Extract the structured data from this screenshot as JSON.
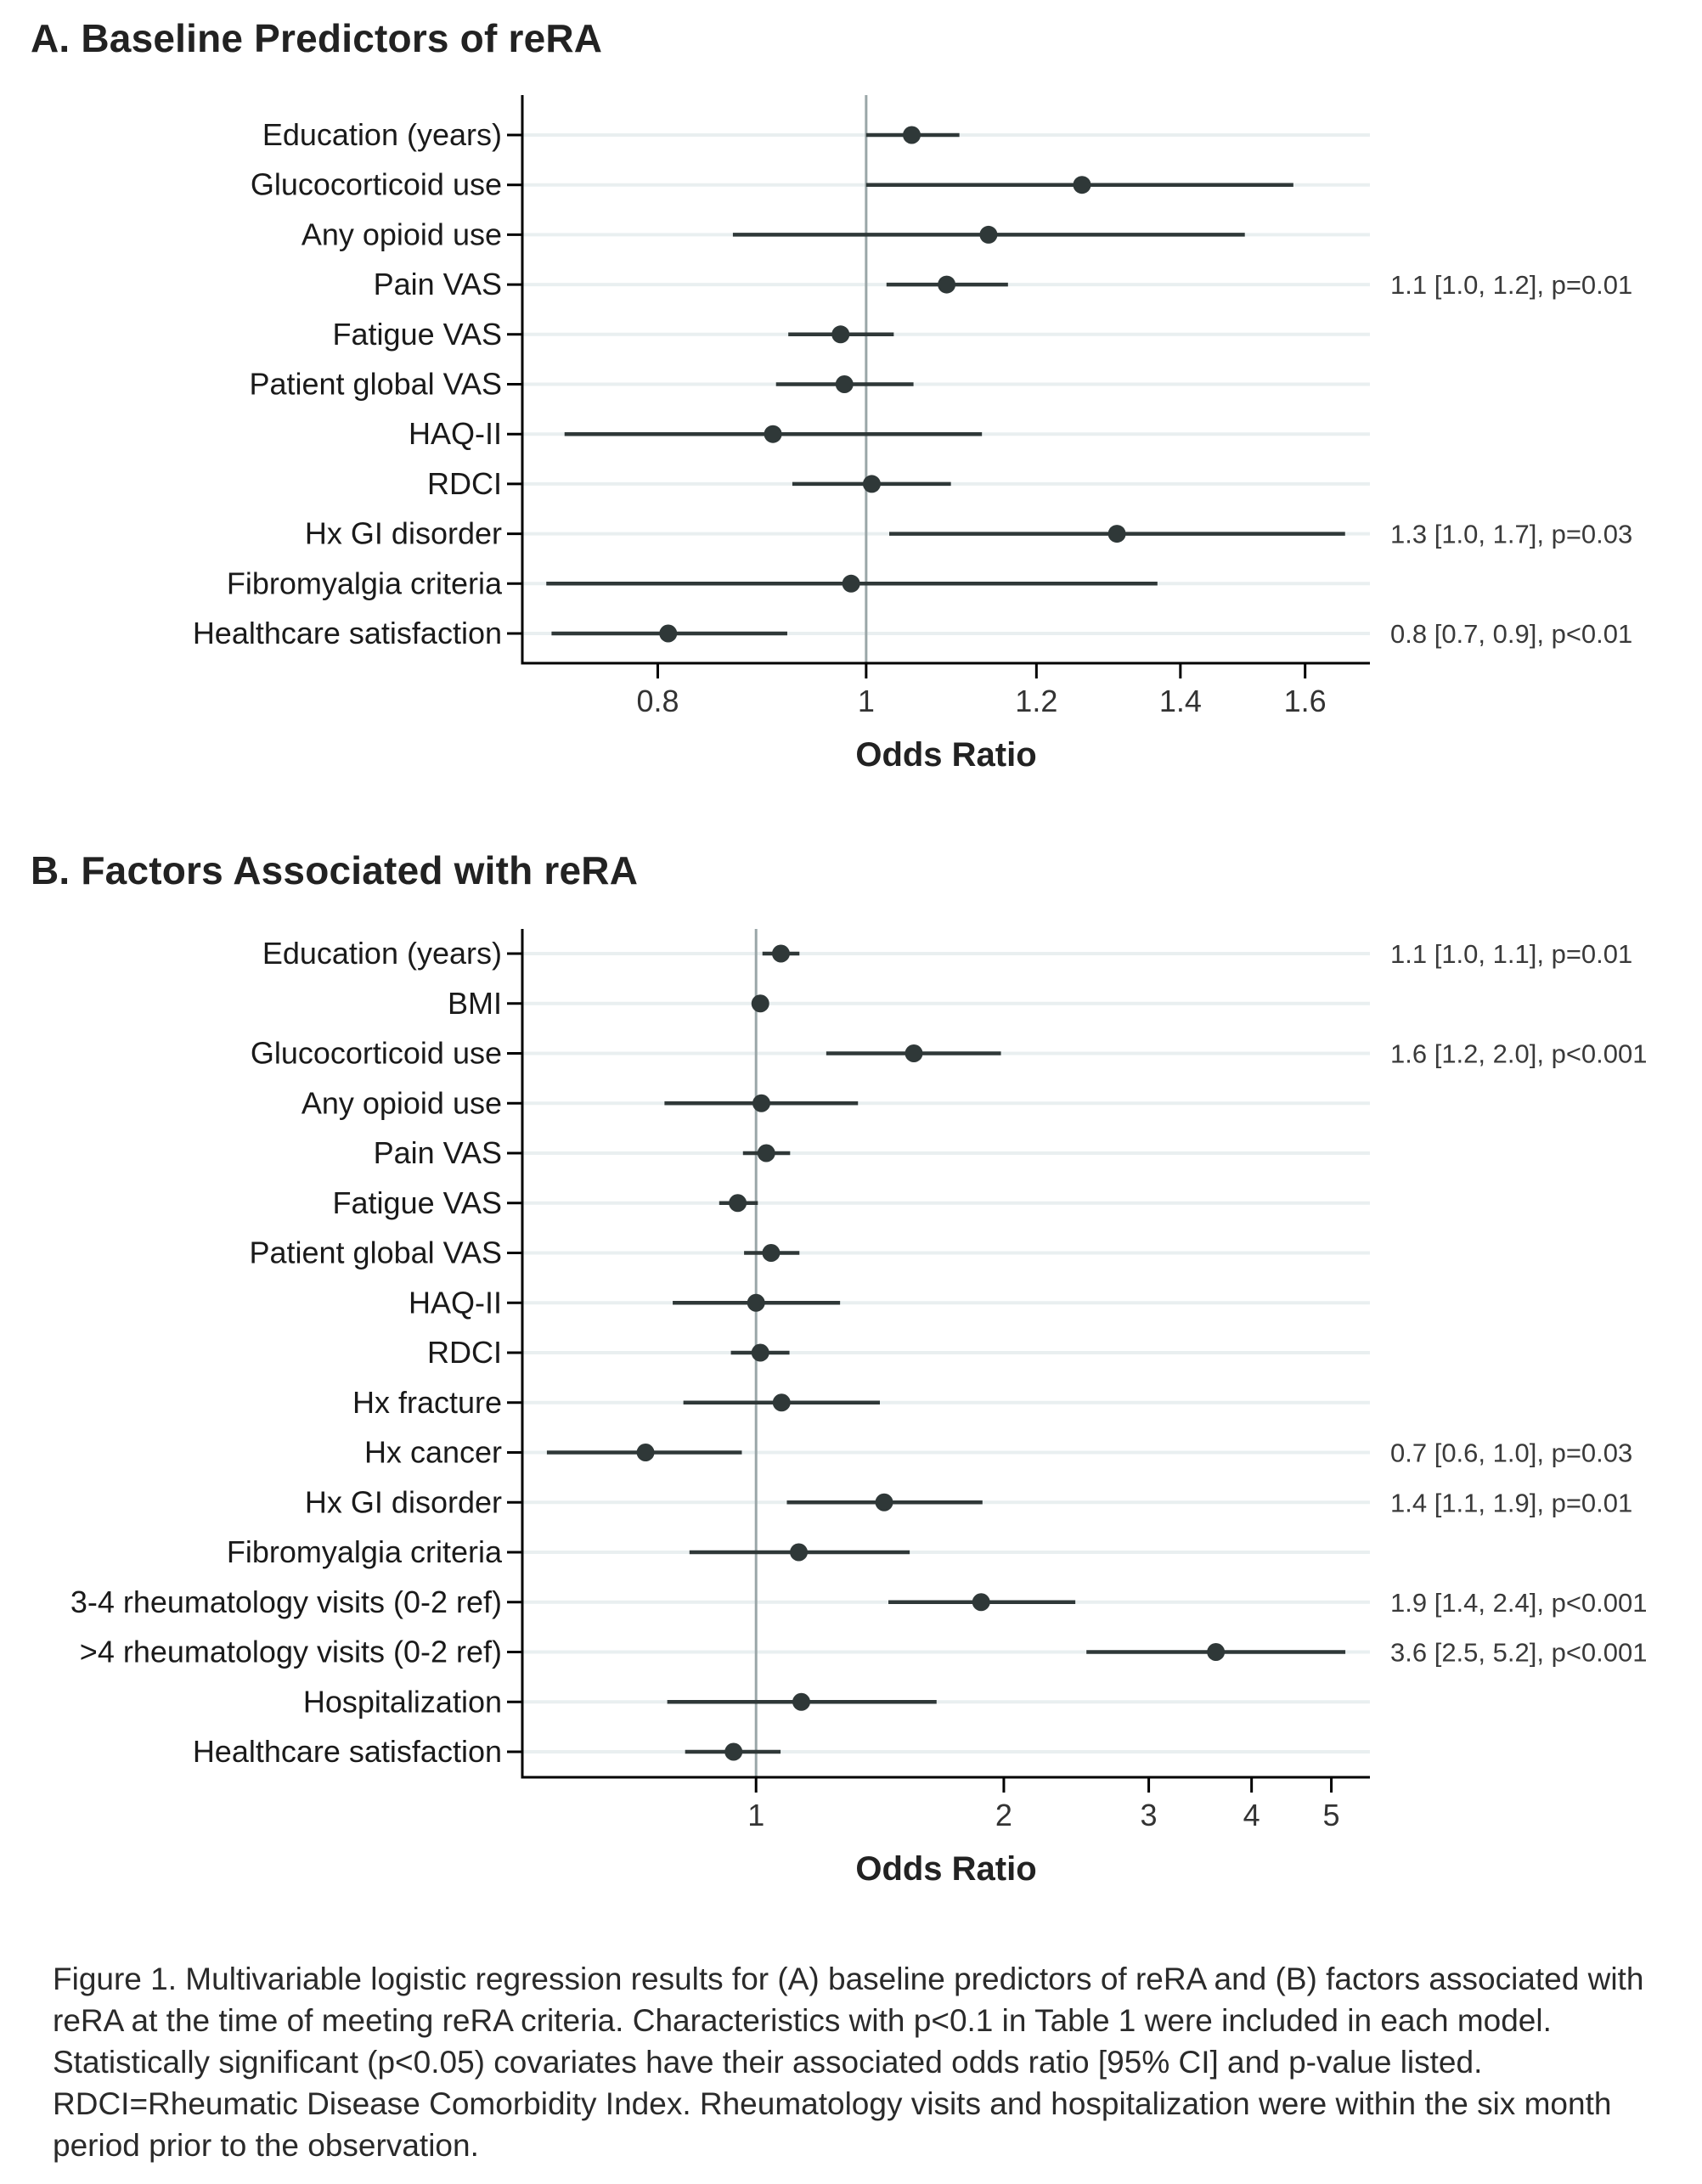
{
  "caption": "Figure 1. Multivariable logistic regression results for (A) baseline predictors of reRA and (B) factors associated with reRA at the time of meeting reRA criteria. Characteristics with p<0.1 in Table 1 were included in each model. Statistically significant (p<0.05) covariates have their associated odds ratio [95% CI] and p-value listed. RDCI=Rheumatic Disease Comorbidity Index. Rheumatology visits and hospitalization were within the six month period prior to the observation.",
  "colors": {
    "point": "#2f3838",
    "ci_line": "#2f3838",
    "reference_line": "#9aa6a8",
    "gridline": "#e9eff0",
    "axis": "#000000"
  },
  "chart_data": [
    {
      "type": "scatter",
      "subtype": "forest-plot",
      "title": "A. Baseline Predictors of reRA",
      "xlabel": "Odds Ratio",
      "ylabel": "",
      "xscale": "log",
      "xlim": [
        0.692,
        1.715
      ],
      "xticks": [
        0.8,
        1,
        1.2,
        1.4,
        1.6
      ],
      "xtick_labels": [
        "0.8",
        "1",
        "1.2",
        "1.4",
        "1.6"
      ],
      "reference_line": 1,
      "grid": "horizontal",
      "legend": "none",
      "rows": [
        {
          "label": "Education (years)",
          "or": 1.05,
          "lo": 1.0,
          "hi": 1.105,
          "annotation": ""
        },
        {
          "label": "Glucocorticoid use",
          "or": 1.26,
          "lo": 1.0,
          "hi": 1.58,
          "annotation": ""
        },
        {
          "label": "Any opioid use",
          "or": 1.14,
          "lo": 0.867,
          "hi": 1.5,
          "annotation": ""
        },
        {
          "label": "Pain VAS",
          "or": 1.09,
          "lo": 1.022,
          "hi": 1.164,
          "annotation": "1.1 [1.0, 1.2], p=0.01"
        },
        {
          "label": "Fatigue VAS",
          "or": 0.973,
          "lo": 0.92,
          "hi": 1.03,
          "annotation": ""
        },
        {
          "label": "Patient global VAS",
          "or": 0.977,
          "lo": 0.908,
          "hi": 1.052,
          "annotation": ""
        },
        {
          "label": "HAQ-II",
          "or": 0.905,
          "lo": 0.724,
          "hi": 1.132,
          "annotation": ""
        },
        {
          "label": "RDCI",
          "or": 1.006,
          "lo": 0.924,
          "hi": 1.095,
          "annotation": ""
        },
        {
          "label": "Hx GI disorder",
          "or": 1.308,
          "lo": 1.025,
          "hi": 1.67,
          "annotation": "1.3 [1.0, 1.7], p=0.03"
        },
        {
          "label": "Fibromyalgia criteria",
          "or": 0.984,
          "lo": 0.71,
          "hi": 1.366,
          "annotation": ""
        },
        {
          "label": "Healthcare satisfaction",
          "or": 0.809,
          "lo": 0.714,
          "hi": 0.919,
          "annotation": "0.8 [0.7, 0.9], p<0.01"
        }
      ]
    },
    {
      "type": "scatter",
      "subtype": "forest-plot",
      "title": "B. Factors Associated with reRA",
      "xlabel": "Odds Ratio",
      "ylabel": "",
      "xscale": "log",
      "xlim": [
        0.52,
        5.57
      ],
      "xticks": [
        1,
        2,
        3,
        4,
        5
      ],
      "xtick_labels": [
        "1",
        "2",
        "3",
        "4",
        "5"
      ],
      "reference_line": 1,
      "grid": "horizontal",
      "legend": "none",
      "rows": [
        {
          "label": "Education (years)",
          "or": 1.072,
          "lo": 1.018,
          "hi": 1.129,
          "annotation": "1.1 [1.0, 1.1], p=0.01"
        },
        {
          "label": "BMI",
          "or": 1.012,
          "lo": 1.0,
          "hi": 1.024,
          "annotation": ""
        },
        {
          "label": "Glucocorticoid use",
          "or": 1.555,
          "lo": 1.217,
          "hi": 1.984,
          "annotation": "1.6 [1.2, 2.0], p<0.001"
        },
        {
          "label": "Any opioid use",
          "or": 1.015,
          "lo": 0.774,
          "hi": 1.33,
          "annotation": ""
        },
        {
          "label": "Pain VAS",
          "or": 1.029,
          "lo": 0.964,
          "hi": 1.1,
          "annotation": ""
        },
        {
          "label": "Fatigue VAS",
          "or": 0.95,
          "lo": 0.902,
          "hi": 1.005,
          "annotation": ""
        },
        {
          "label": "Patient global VAS",
          "or": 1.043,
          "lo": 0.967,
          "hi": 1.129,
          "annotation": ""
        },
        {
          "label": "HAQ-II",
          "or": 1.0,
          "lo": 0.792,
          "hi": 1.265,
          "annotation": ""
        },
        {
          "label": "RDCI",
          "or": 1.012,
          "lo": 0.932,
          "hi": 1.098,
          "annotation": ""
        },
        {
          "label": "Hx fracture",
          "or": 1.074,
          "lo": 0.816,
          "hi": 1.414,
          "annotation": ""
        },
        {
          "label": "Hx cancer",
          "or": 0.734,
          "lo": 0.557,
          "hi": 0.961,
          "annotation": "0.7 [0.6, 1.0], p=0.03"
        },
        {
          "label": "Hx GI disorder",
          "or": 1.431,
          "lo": 1.09,
          "hi": 1.884,
          "annotation": "1.4 [1.1, 1.9], p=0.01"
        },
        {
          "label": "Fibromyalgia criteria",
          "or": 1.127,
          "lo": 0.83,
          "hi": 1.537,
          "annotation": ""
        },
        {
          "label": "3-4 rheumatology visits (0-2 ref)",
          "or": 1.877,
          "lo": 1.448,
          "hi": 2.443,
          "annotation": "1.9 [1.4, 2.4], p<0.001"
        },
        {
          "label": ">4 rheumatology visits (0-2 ref)",
          "or": 3.62,
          "lo": 2.52,
          "hi": 5.2,
          "annotation": "3.6 [2.5, 5.2], p<0.001"
        },
        {
          "label": "Hospitalization",
          "or": 1.135,
          "lo": 0.78,
          "hi": 1.657,
          "annotation": ""
        },
        {
          "label": "Healthcare satisfaction",
          "or": 0.939,
          "lo": 0.82,
          "hi": 1.071,
          "annotation": ""
        }
      ]
    }
  ]
}
